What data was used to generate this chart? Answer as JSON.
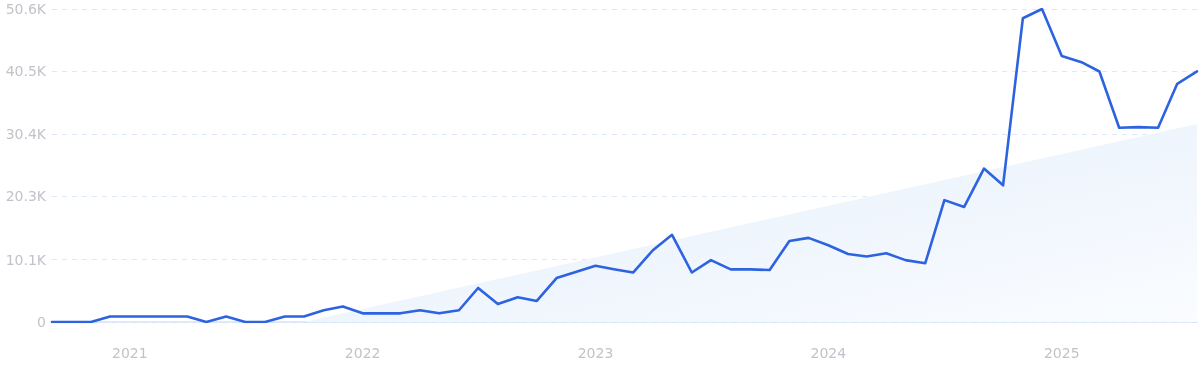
{
  "chart_data": {
    "type": "line",
    "x": [
      "2020-09",
      "2020-10",
      "2020-11",
      "2020-12",
      "2021-01",
      "2021-02",
      "2021-03",
      "2021-04",
      "2021-05",
      "2021-06",
      "2021-07",
      "2021-08",
      "2021-09",
      "2021-10",
      "2021-11",
      "2021-12",
      "2022-01",
      "2022-02",
      "2022-03",
      "2022-04",
      "2022-05",
      "2022-06",
      "2022-07",
      "2022-08",
      "2022-09",
      "2022-10",
      "2022-11",
      "2022-12",
      "2023-01",
      "2023-02",
      "2023-03",
      "2023-04",
      "2023-05",
      "2023-06",
      "2023-07",
      "2023-08",
      "2023-09",
      "2023-10",
      "2023-11",
      "2023-12",
      "2024-01",
      "2024-02",
      "2024-03",
      "2024-04",
      "2024-05",
      "2024-06",
      "2024-07",
      "2024-08",
      "2024-09",
      "2024-10",
      "2024-11",
      "2024-12",
      "2025-01",
      "2025-02",
      "2025-03",
      "2025-04",
      "2025-05",
      "2025-06",
      "2025-07",
      "2025-08"
    ],
    "series": [
      {
        "color": "#2d62e0",
        "values": [
          0,
          0,
          0,
          900,
          900,
          900,
          900,
          900,
          0,
          900,
          0,
          0,
          900,
          900,
          1900,
          2500,
          1400,
          1400,
          1400,
          1900,
          1400,
          1900,
          5500,
          2900,
          4000,
          3400,
          7100,
          8100,
          9100,
          8500,
          8000,
          11600,
          14100,
          8000,
          10000,
          8500,
          8500,
          8400,
          13100,
          13600,
          12400,
          11000,
          10600,
          11100,
          10000,
          9500,
          19700,
          18600,
          24800,
          22100,
          49100,
          50600,
          43000,
          42000,
          40500,
          31400,
          31500,
          31400,
          38500,
          40500
        ]
      },
      {
        "type": "area",
        "color": "#e3eefb",
        "x": [
          "2021-10",
          "2025-08"
        ],
        "values": [
          0,
          32000
        ]
      }
    ],
    "xlim": [
      "2020-09",
      "2025-08"
    ],
    "xticks": [
      "2021",
      "2022",
      "2023",
      "2024",
      "2025"
    ],
    "ylim": [
      0,
      50600
    ],
    "yticks": [
      0,
      {
        "value": 10100,
        "label": "10.1K"
      },
      {
        "value": 20300,
        "label": "20.3K"
      },
      {
        "value": 30400,
        "label": "30.4K"
      },
      {
        "value": 40500,
        "label": "40.5K"
      },
      {
        "value": 50600,
        "label": "50.6K"
      }
    ],
    "grid": "y",
    "marker": "none",
    "line_style": "solid"
  }
}
